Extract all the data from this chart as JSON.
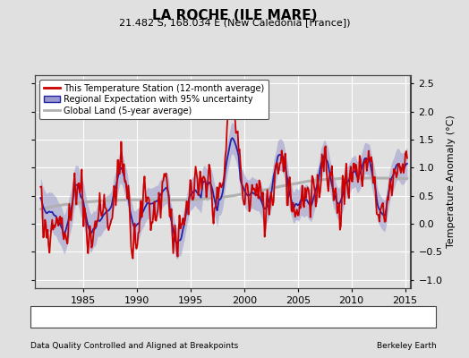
{
  "title": "LA ROCHE (ILE MARE)",
  "subtitle": "21.482 S, 168.034 E (New Caledonia [France])",
  "xlabel_left": "Data Quality Controlled and Aligned at Breakpoints",
  "xlabel_right": "Berkeley Earth",
  "ylabel": "Temperature Anomaly (°C)",
  "xlim": [
    1980.5,
    2015.5
  ],
  "ylim": [
    -1.15,
    2.65
  ],
  "yticks": [
    -1,
    -0.5,
    0,
    0.5,
    1,
    1.5,
    2,
    2.5
  ],
  "xticks": [
    1985,
    1990,
    1995,
    2000,
    2005,
    2010,
    2015
  ],
  "background_color": "#e0e0e0",
  "legend_labels": [
    "This Temperature Station (12-month average)",
    "Regional Expectation with 95% uncertainty",
    "Global Land (5-year average)"
  ],
  "station_line_color": "#cc0000",
  "regional_line_color": "#2222aa",
  "regional_fill_color": "#9999cc",
  "global_line_color": "#b0b0b0",
  "grid_color": "#ffffff",
  "title_fontsize": 11,
  "subtitle_fontsize": 8,
  "axis_fontsize": 8,
  "legend_fontsize": 7
}
